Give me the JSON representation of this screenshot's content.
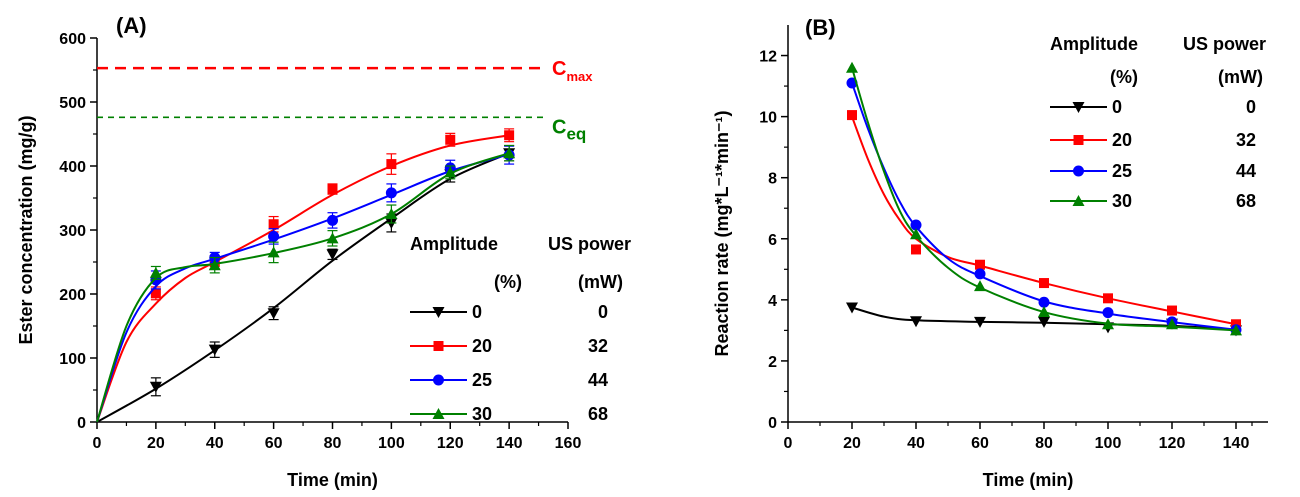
{
  "legend_header": {
    "amplitude_label": "Amplitude",
    "amplitude_unit": "(%)",
    "power_label": "US power",
    "power_unit": "(mW)"
  },
  "legend_entries": [
    {
      "amplitude": "0",
      "power": "0",
      "color": "#000000",
      "marker": "triangle-down"
    },
    {
      "amplitude": "20",
      "power": "32",
      "color": "#ff0000",
      "marker": "square"
    },
    {
      "amplitude": "25",
      "power": "44",
      "color": "#0000ff",
      "marker": "circle"
    },
    {
      "amplitude": "30",
      "power": "68",
      "color": "#008000",
      "marker": "triangle-up"
    }
  ],
  "chart_data": [
    {
      "panel_label": "(A)",
      "type": "line",
      "xlabel": "Time (min)",
      "ylabel": "Ester concentration (mg/g)",
      "xlim": [
        0,
        160
      ],
      "ylim": [
        0,
        600
      ],
      "xticks": [
        0,
        20,
        40,
        60,
        80,
        100,
        120,
        140,
        160
      ],
      "yticks": [
        0,
        100,
        200,
        300,
        400,
        500,
        600
      ],
      "grid": false,
      "legend_position": "center-right",
      "reference_lines": [
        {
          "label": "C",
          "subscript": "max",
          "y": 553,
          "color": "#ff0000"
        },
        {
          "label": "C",
          "subscript": "eq",
          "y": 476,
          "color": "#008000"
        }
      ],
      "series": [
        {
          "x": [
            20,
            40,
            60,
            80,
            100,
            120,
            140
          ],
          "y": [
            55,
            113,
            170,
            262,
            311,
            387,
            420
          ],
          "err": [
            14,
            12,
            10,
            8,
            14,
            12,
            12
          ],
          "fit": [
            [
              0,
              0
            ],
            [
              20,
              52
            ],
            [
              40,
              112
            ],
            [
              60,
              178
            ],
            [
              80,
              252
            ],
            [
              100,
              318
            ],
            [
              120,
              380
            ],
            [
              140,
              420
            ]
          ]
        },
        {
          "x": [
            20,
            40,
            60,
            80,
            100,
            120,
            140
          ],
          "y": [
            201,
            250,
            309,
            364,
            403,
            441,
            448
          ],
          "err": [
            10,
            10,
            12,
            8,
            16,
            10,
            10
          ],
          "fit": [
            [
              0,
              0
            ],
            [
              10,
              125
            ],
            [
              20,
              185
            ],
            [
              30,
              225
            ],
            [
              40,
              250
            ],
            [
              60,
              300
            ],
            [
              80,
              355
            ],
            [
              100,
              400
            ],
            [
              120,
              432
            ],
            [
              140,
              448
            ]
          ]
        },
        {
          "x": [
            20,
            40,
            60,
            80,
            100,
            120,
            140
          ],
          "y": [
            222,
            257,
            290,
            315,
            358,
            397,
            417
          ],
          "err": [
            14,
            8,
            12,
            12,
            14,
            12,
            14
          ],
          "fit": [
            [
              0,
              0
            ],
            [
              10,
              140
            ],
            [
              20,
              212
            ],
            [
              30,
              240
            ],
            [
              40,
              255
            ],
            [
              60,
              285
            ],
            [
              80,
              318
            ],
            [
              100,
              355
            ],
            [
              120,
              392
            ],
            [
              140,
              418
            ]
          ]
        },
        {
          "x": [
            20,
            40,
            60,
            80,
            100,
            120,
            140
          ],
          "y": [
            233,
            245,
            265,
            287,
            325,
            390,
            420
          ],
          "err": [
            10,
            12,
            16,
            12,
            14,
            10,
            12
          ],
          "fit": [
            [
              0,
              0
            ],
            [
              10,
              150
            ],
            [
              20,
              225
            ],
            [
              30,
              242
            ],
            [
              40,
              247
            ],
            [
              60,
              264
            ],
            [
              80,
              287
            ],
            [
              100,
              325
            ],
            [
              120,
              388
            ],
            [
              140,
              420
            ]
          ]
        }
      ]
    },
    {
      "panel_label": "(B)",
      "type": "line",
      "xlabel": "Time (min)",
      "ylabel": "Reaction rate (mg*L⁻¹*min⁻¹)",
      "xlim": [
        0,
        150
      ],
      "ylim": [
        0,
        13
      ],
      "xticks": [
        0,
        20,
        40,
        60,
        80,
        100,
        120,
        140
      ],
      "yticks": [
        0,
        2,
        4,
        6,
        8,
        10,
        12
      ],
      "grid": false,
      "legend_position": "top-right",
      "series": [
        {
          "x": [
            20,
            40,
            60,
            80,
            100,
            120,
            140
          ],
          "y": [
            3.75,
            3.3,
            3.28,
            3.28,
            3.1,
            3.22,
            3.0
          ],
          "fit": [
            [
              20,
              3.75
            ],
            [
              30,
              3.45
            ],
            [
              40,
              3.33
            ],
            [
              60,
              3.28
            ],
            [
              80,
              3.25
            ],
            [
              100,
              3.2
            ],
            [
              120,
              3.15
            ],
            [
              140,
              3.02
            ]
          ]
        },
        {
          "x": [
            20,
            40,
            60,
            80,
            100,
            120,
            140
          ],
          "y": [
            10.05,
            5.65,
            5.15,
            4.55,
            4.05,
            3.65,
            3.2
          ],
          "fit": [
            [
              20,
              10.0
            ],
            [
              25,
              8.6
            ],
            [
              30,
              7.45
            ],
            [
              35,
              6.6
            ],
            [
              40,
              6.0
            ],
            [
              50,
              5.4
            ],
            [
              60,
              5.12
            ],
            [
              80,
              4.55
            ],
            [
              100,
              4.05
            ],
            [
              120,
              3.62
            ],
            [
              140,
              3.2
            ]
          ]
        },
        {
          "x": [
            20,
            40,
            60,
            80,
            100,
            120,
            140
          ],
          "y": [
            11.1,
            6.45,
            4.85,
            3.92,
            3.58,
            3.28,
            3.02
          ],
          "fit": [
            [
              20,
              11.1
            ],
            [
              25,
              9.6
            ],
            [
              30,
              8.3
            ],
            [
              35,
              7.2
            ],
            [
              40,
              6.4
            ],
            [
              50,
              5.35
            ],
            [
              60,
              4.78
            ],
            [
              80,
              3.95
            ],
            [
              100,
              3.55
            ],
            [
              120,
              3.27
            ],
            [
              140,
              3.02
            ]
          ]
        },
        {
          "x": [
            20,
            40,
            60,
            80,
            100,
            120,
            140
          ],
          "y": [
            11.6,
            6.15,
            4.45,
            3.6,
            3.2,
            3.2,
            3.0
          ],
          "fit": [
            [
              20,
              11.6
            ],
            [
              25,
              9.8
            ],
            [
              30,
              8.2
            ],
            [
              35,
              6.9
            ],
            [
              40,
              6.1
            ],
            [
              50,
              5.05
            ],
            [
              60,
              4.4
            ],
            [
              80,
              3.6
            ],
            [
              100,
              3.22
            ],
            [
              120,
              3.12
            ],
            [
              140,
              3.0
            ]
          ]
        }
      ]
    }
  ]
}
